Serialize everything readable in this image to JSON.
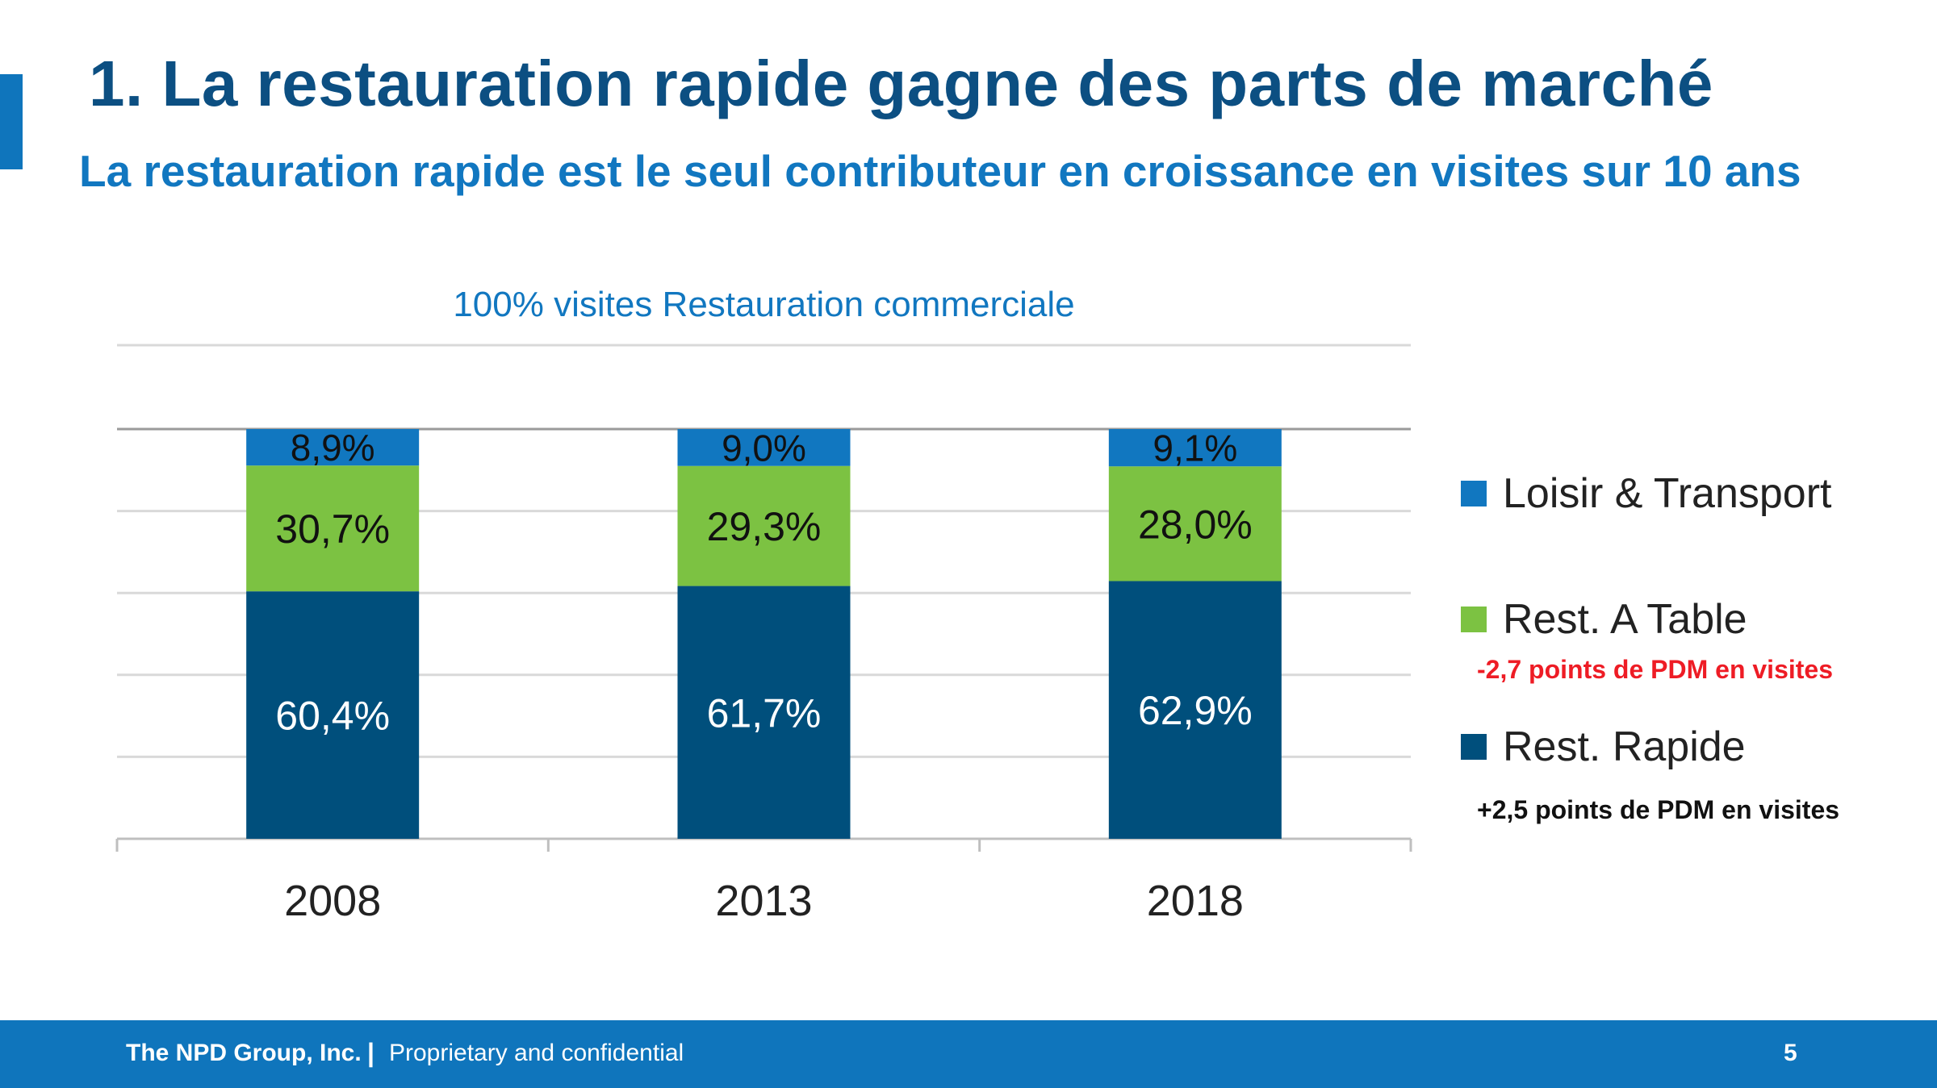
{
  "slide": {
    "title": "1. La restauration rapide gagne des parts de marché",
    "subtitle": "La restauration rapide est le seul contributeur en croissance en visites sur 10 ans"
  },
  "chart_data": {
    "type": "bar",
    "stacked": true,
    "title": "100% visites Restauration commerciale",
    "categories": [
      "2008",
      "2013",
      "2018"
    ],
    "series": [
      {
        "name": "Rest. Rapide",
        "values": [
          60.4,
          61.7,
          62.9
        ],
        "labels": [
          "60,4%",
          "61,7%",
          "62,9%"
        ],
        "color": "#004f7c",
        "label_color": "#ffffff"
      },
      {
        "name": "Rest. A Table",
        "values": [
          30.7,
          29.3,
          28.0
        ],
        "labels": [
          "30,7%",
          "29,3%",
          "28,0%"
        ],
        "color": "#7cc242",
        "label_color": "#111111"
      },
      {
        "name": "Loisir & Transport",
        "values": [
          8.9,
          9.0,
          9.1
        ],
        "labels": [
          "8,9%",
          "9,0%",
          "9,1%"
        ],
        "color": "#1177c0",
        "label_color": "#111111"
      }
    ],
    "ylim": [
      0,
      100
    ],
    "grid": true,
    "legend_position": "right"
  },
  "legend": {
    "items": [
      {
        "label": "Loisir & Transport",
        "color": "#1177c0"
      },
      {
        "label": "Rest. A Table",
        "color": "#7cc242"
      },
      {
        "label": "Rest. Rapide",
        "color": "#004f7c"
      }
    ],
    "notes": {
      "table": {
        "text": "-2,7 points de PDM en visites",
        "color": "#ee1c25"
      },
      "rapide": {
        "text": "+2,5 points de PDM en visites",
        "color": "#111111"
      }
    }
  },
  "footer": {
    "company": "The NPD Group, Inc.",
    "separator": "|",
    "confidential": "Proprietary and confidential",
    "page_number": "5"
  }
}
